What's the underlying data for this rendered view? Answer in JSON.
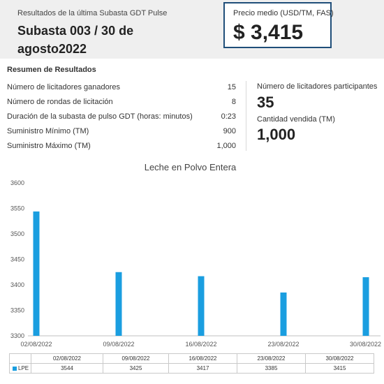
{
  "header": {
    "caption": "Resultados de la última Subasta GDT Pulse",
    "title": "Subasta 003 / 30 de agosto2022",
    "price_caption": "Precio medio (USD/TM, FAS)",
    "price_value": "$ 3,415"
  },
  "summary": {
    "title": "Resumen de Resultados",
    "rows": [
      {
        "label": "Número de licitadores ganadores",
        "value": "15"
      },
      {
        "label": "Número de rondas de licitación",
        "value": "8"
      },
      {
        "label": "Duración de la subasta de pulso GDT (horas: minutos)",
        "value": "0:23"
      },
      {
        "label": "Suministro Mínimo (TM)",
        "value": "900"
      },
      {
        "label": "Suministro Máximo (TM)",
        "value": "1,000"
      }
    ],
    "stats": [
      {
        "label": "Número de licitadores participantes",
        "value": "35"
      },
      {
        "label": "Cantidad vendida (TM)",
        "value": "1,000"
      }
    ]
  },
  "colors": {
    "bar": "#1a9ee0",
    "price_border": "#1f4e79",
    "header_bg": "#efefef"
  },
  "chart_data": {
    "type": "bar",
    "title": "Leche en Polvo Entera",
    "categories": [
      "02/08/2022",
      "09/08/2022",
      "16/08/2022",
      "23/08/2022",
      "30/08/2022"
    ],
    "series": [
      {
        "name": "LPE",
        "values": [
          3544,
          3425,
          3417,
          3385,
          3415
        ]
      }
    ],
    "ylim": [
      3300,
      3600
    ],
    "yticks": [
      3300,
      3350,
      3400,
      3450,
      3500,
      3550,
      3600
    ],
    "grid": false,
    "legend": "data-table-bottom"
  }
}
